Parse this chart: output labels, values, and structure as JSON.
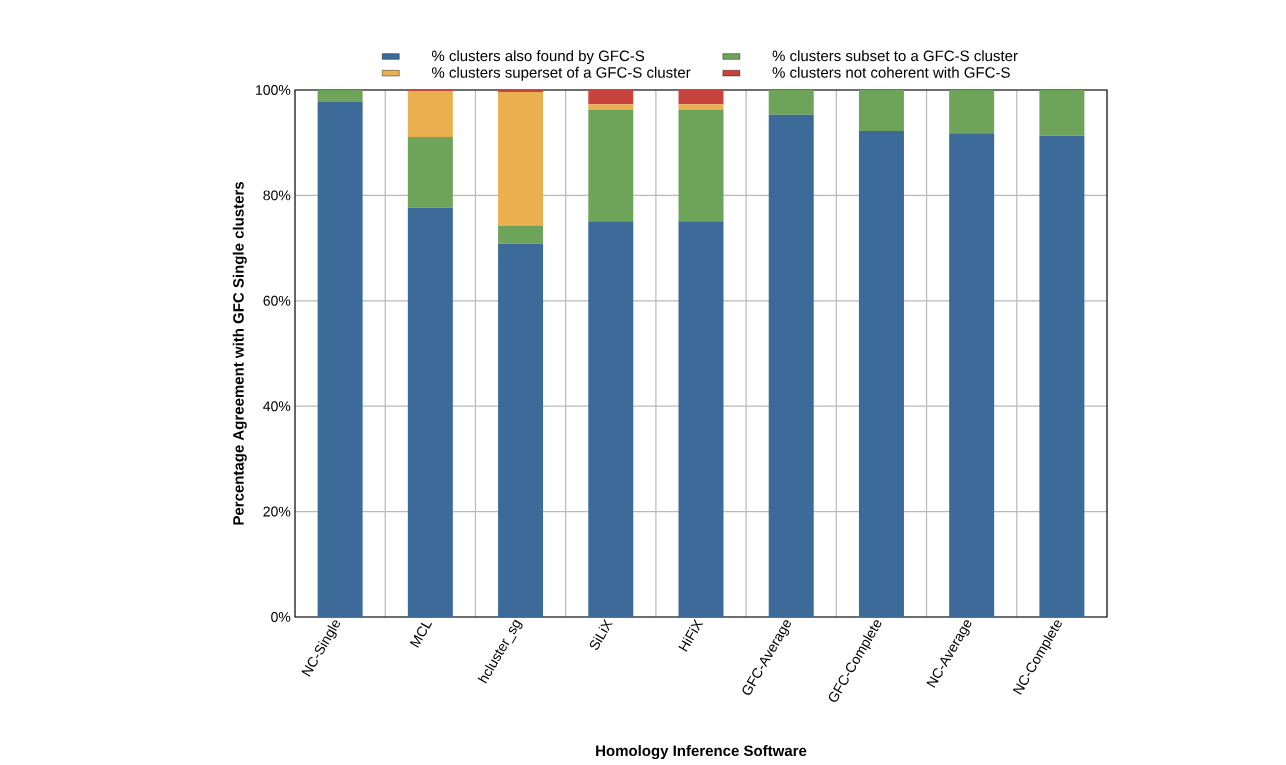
{
  "chart_data": {
    "type": "bar",
    "stacked": true,
    "xlabel": "Homology Inference Software",
    "ylabel": "Percentage Agreement with GFC Single clusters",
    "categories": [
      "NC-Single",
      "MCL",
      "hcluster_sg",
      "SiLiX",
      "HiFiX",
      "GFC-Average",
      "GFC-Complete",
      "NC-Average",
      "NC-Complete"
    ],
    "series": [
      {
        "name": "% clusters also found by GFC-S",
        "color": "#3c6b9a",
        "values": [
          97.7,
          77.7,
          70.8,
          75.1,
          75.1,
          95.3,
          92.2,
          91.8,
          91.3
        ]
      },
      {
        "name": "% clusters subset to a GFC-S cluster",
        "color": "#6ea45a",
        "values": [
          2.3,
          13.4,
          3.5,
          21.1,
          21.1,
          4.7,
          7.8,
          8.2,
          8.7
        ]
      },
      {
        "name": "% clusters superset of a GFC-S cluster",
        "color": "#eaaf4e",
        "values": [
          0,
          8.7,
          25.3,
          1.1,
          1.1,
          0,
          0,
          0,
          0
        ]
      },
      {
        "name": "% clusters not coherent with GFC-S",
        "color": "#c8433e",
        "values": [
          0,
          0.2,
          0.4,
          2.7,
          2.7,
          0,
          0,
          0,
          0
        ]
      }
    ],
    "ylim": [
      0,
      100
    ],
    "yticks": [
      {
        "value": 0,
        "label": "0%"
      },
      {
        "value": 20,
        "label": "20%"
      },
      {
        "value": 40,
        "label": "40%"
      },
      {
        "value": 60,
        "label": "60%"
      },
      {
        "value": 80,
        "label": "80%"
      },
      {
        "value": 100,
        "label": "100%"
      }
    ],
    "grid": true,
    "legend": "top"
  }
}
